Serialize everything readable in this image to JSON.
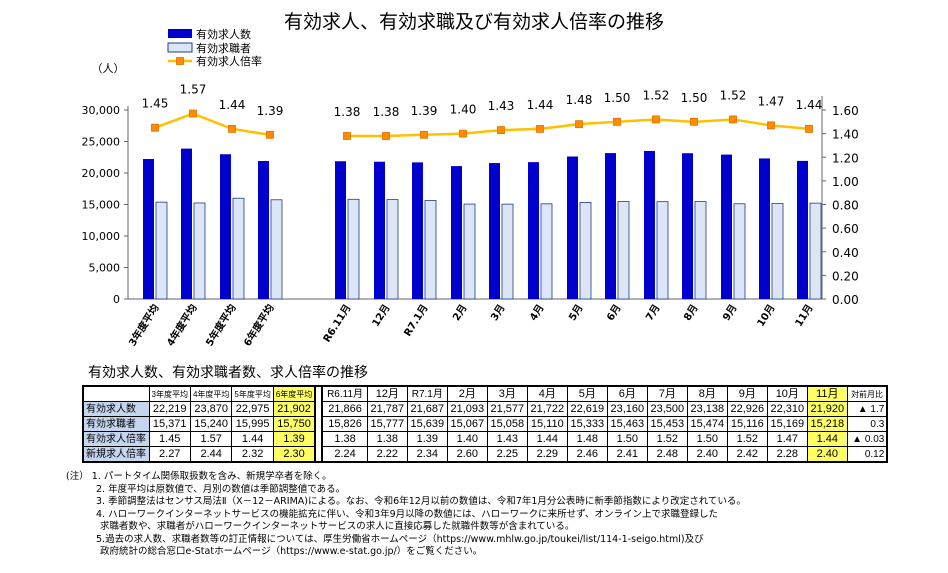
{
  "chart_data": {
    "type": "bar+line",
    "title": "有効求人、有効求職及び有効求人倍率の推移",
    "y_left_unit": "（人）",
    "y_left_ticks": [
      "0",
      "5,000",
      "10,000",
      "15,000",
      "20,000",
      "25,000",
      "30,000"
    ],
    "y_left_range": [
      0,
      30000
    ],
    "y_right_ticks": [
      "0.00",
      "0.20",
      "0.40",
      "0.60",
      "0.80",
      "1.00",
      "1.20",
      "1.40",
      "1.60"
    ],
    "y_right_range": [
      0,
      1.6
    ],
    "legend": {
      "openings": "有効求人数",
      "applicants": "有効求職者",
      "ratio": "有効求人倍率"
    },
    "categories": [
      "3年度平均",
      "4年度平均",
      "5年度平均",
      "6年度平均",
      "R6.11月",
      "12月",
      "R7.1月",
      "2月",
      "3月",
      "4月",
      "5月",
      "6月",
      "7月",
      "8月",
      "9月",
      "10月",
      "11月"
    ],
    "series": [
      {
        "name": "有効求人数",
        "values": [
          22219,
          23870,
          22975,
          21902,
          21866,
          21787,
          21687,
          21093,
          21577,
          21722,
          22619,
          23160,
          23500,
          23138,
          22926,
          22310,
          21920
        ]
      },
      {
        "name": "有効求職者",
        "values": [
          15371,
          15240,
          15995,
          15750,
          15826,
          15777,
          15639,
          15067,
          15058,
          15110,
          15333,
          15463,
          15453,
          15474,
          15116,
          15169,
          15218
        ]
      },
      {
        "name": "有効求人倍率",
        "values": [
          1.45,
          1.57,
          1.44,
          1.39,
          1.38,
          1.38,
          1.39,
          1.4,
          1.43,
          1.44,
          1.48,
          1.5,
          1.52,
          1.5,
          1.52,
          1.47,
          1.44
        ]
      }
    ],
    "ratio_labels": [
      "1.45",
      "1.57",
      "1.44",
      "1.39",
      "1.38",
      "1.38",
      "1.39",
      "1.40",
      "1.43",
      "1.44",
      "1.48",
      "1.50",
      "1.52",
      "1.50",
      "1.52",
      "1.47",
      "1.44"
    ],
    "colors": {
      "openings": "#0000cc",
      "applicants": "#dce6f7",
      "applicants_border": "#1f3c88",
      "ratio_line": "#ffc000",
      "ratio_marker": "#ff8c00"
    }
  },
  "table": {
    "title": "有効求人数、有効求職者数、求人倍率の推移",
    "annual_headers": [
      "3年度平均",
      "4年度平均",
      "5年度平均",
      "6年度平均"
    ],
    "monthly_headers": [
      "R6.11月",
      "12月",
      "R7.1月",
      "2月",
      "3月",
      "4月",
      "5月",
      "6月",
      "7月",
      "8月",
      "9月",
      "10月",
      "11月"
    ],
    "change_header": "対前月比",
    "rows": [
      {
        "label": "有効求人数",
        "annual": [
          "22,219",
          "23,870",
          "22,975",
          "21,902"
        ],
        "monthly": [
          "21,866",
          "21,787",
          "21,687",
          "21,093",
          "21,577",
          "21,722",
          "22,619",
          "23,160",
          "23,500",
          "23,138",
          "22,926",
          "22,310",
          "21,920"
        ],
        "change": "▲ 1.7"
      },
      {
        "label": "有効求職者",
        "annual": [
          "15,371",
          "15,240",
          "15,995",
          "15,750"
        ],
        "monthly": [
          "15,826",
          "15,777",
          "15,639",
          "15,067",
          "15,058",
          "15,110",
          "15,333",
          "15,463",
          "15,453",
          "15,474",
          "15,116",
          "15,169",
          "15,218"
        ],
        "change": "0.3"
      },
      {
        "label": "有効求人倍率",
        "annual": [
          "1.45",
          "1.57",
          "1.44",
          "1.39"
        ],
        "monthly": [
          "1.38",
          "1.38",
          "1.39",
          "1.40",
          "1.43",
          "1.44",
          "1.48",
          "1.50",
          "1.52",
          "1.50",
          "1.52",
          "1.47",
          "1.44"
        ],
        "change": "▲ 0.03"
      },
      {
        "label": "新規求人倍率",
        "annual": [
          "2.27",
          "2.44",
          "2.32",
          "2.30"
        ],
        "monthly": [
          "2.24",
          "2.22",
          "2.34",
          "2.60",
          "2.25",
          "2.29",
          "2.46",
          "2.41",
          "2.48",
          "2.40",
          "2.42",
          "2.28",
          "2.40"
        ],
        "change": "0.12"
      }
    ]
  },
  "notes": {
    "prefix": "(注）",
    "lines": [
      "1. パートタイム関係取扱数を含み、新規学卒者を除く。",
      "2. 年度平均は原数値で、月別の数値は季節調整値である。",
      "3. 季節調整法はセンサス局法Ⅱ（X－12－ARIMA)による。なお、令和6年12月以前の数値は、令和7年1月分公表時に新季節指数により改定されている。",
      "4. ハローワークインターネットサービスの機能拡充に伴い、令和3年9月以降の数値には、ハローワークに来所せず、オンライン上で求職登録した",
      "求職者数や、求職者がハローワークインターネットサービスの求人に直接応募した就職件数等が含まれている。",
      "5.過去の求人数、求職者数等の訂正情報については、厚生労働省ホームページ（https://www.mhlw.go.jp/toukei/list/114-1-seigo.html)及び",
      "政府統計の総合窓口e-Statホームページ（https://www.e-stat.go.jp/）をご覧ください。"
    ]
  }
}
